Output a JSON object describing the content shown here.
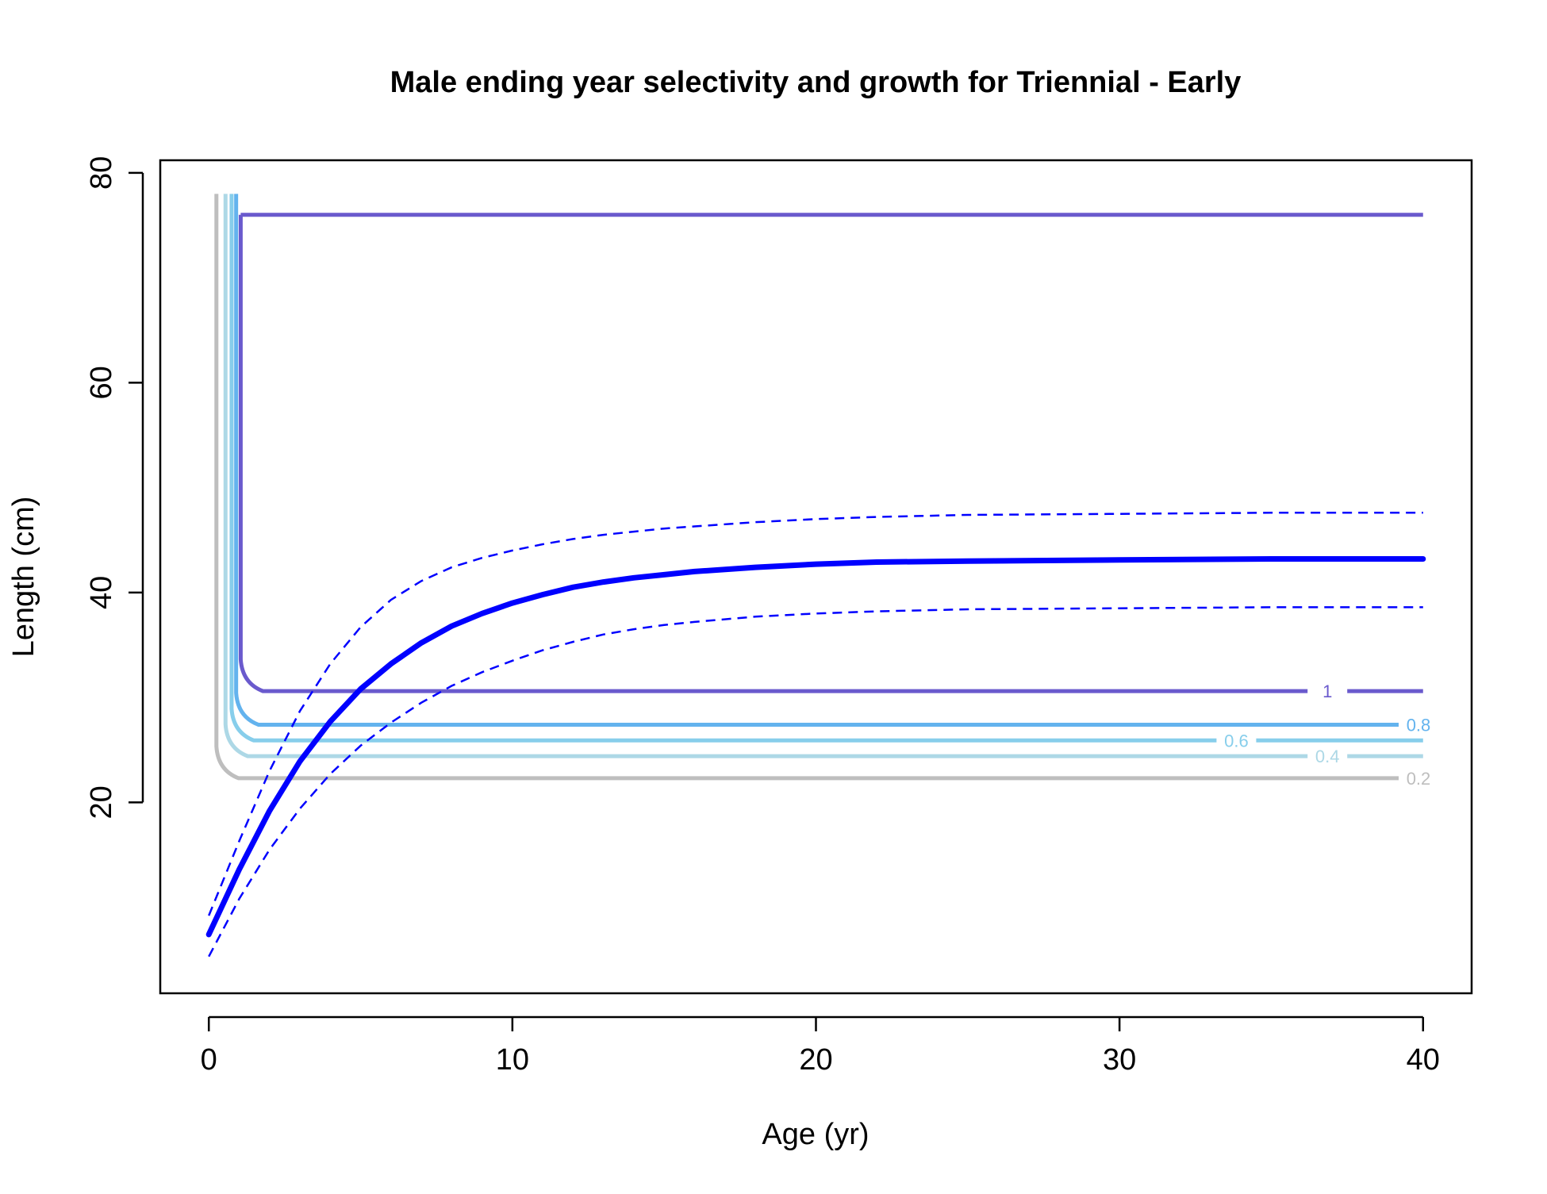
{
  "chart_data": {
    "type": "line",
    "title": "Male ending year selectivity and growth for Triennial - Early",
    "xlabel": "Age (yr)",
    "ylabel": "Length (cm)",
    "xlim": [
      -1.6,
      41.6
    ],
    "ylim": [
      1.8,
      81.2
    ],
    "xticks": [
      0,
      10,
      20,
      30,
      40
    ],
    "yticks": [
      20,
      40,
      60,
      80
    ],
    "grid": false,
    "legend": "none",
    "colors": {
      "growth": "#0000ff",
      "contour_1": "#6a5acd",
      "contour_0_8": "#63b3ee",
      "contour_0_6": "#87ceeb",
      "contour_0_4": "#add8e6",
      "contour_0_2": "#bebebe"
    },
    "growth": {
      "mean": [
        [
          0,
          7.4
        ],
        [
          1,
          13.6
        ],
        [
          2,
          19.2
        ],
        [
          3,
          23.9
        ],
        [
          4,
          27.7
        ],
        [
          5,
          30.8
        ],
        [
          6,
          33.2
        ],
        [
          7,
          35.2
        ],
        [
          8,
          36.8
        ],
        [
          9,
          38.0
        ],
        [
          10,
          39.0
        ],
        [
          11,
          39.8
        ],
        [
          12,
          40.5
        ],
        [
          13,
          41.0
        ],
        [
          14,
          41.4
        ],
        [
          15,
          41.7
        ],
        [
          16,
          42.0
        ],
        [
          18,
          42.4
        ],
        [
          20,
          42.7
        ],
        [
          22,
          42.9
        ],
        [
          25,
          43.0
        ],
        [
          30,
          43.1
        ],
        [
          35,
          43.2
        ],
        [
          40,
          43.2
        ]
      ],
      "upper": [
        [
          0,
          9.2
        ],
        [
          1,
          16.3
        ],
        [
          2,
          23.0
        ],
        [
          3,
          28.7
        ],
        [
          4,
          33.2
        ],
        [
          5,
          36.7
        ],
        [
          6,
          39.3
        ],
        [
          7,
          41.1
        ],
        [
          8,
          42.4
        ],
        [
          9,
          43.3
        ],
        [
          10,
          44.0
        ],
        [
          11,
          44.6
        ],
        [
          12,
          45.1
        ],
        [
          13,
          45.5
        ],
        [
          14,
          45.8
        ],
        [
          15,
          46.1
        ],
        [
          16,
          46.3
        ],
        [
          18,
          46.7
        ],
        [
          20,
          47.0
        ],
        [
          22,
          47.2
        ],
        [
          25,
          47.4
        ],
        [
          30,
          47.5
        ],
        [
          35,
          47.6
        ],
        [
          40,
          47.6
        ]
      ],
      "lower": [
        [
          0,
          5.3
        ],
        [
          1,
          10.8
        ],
        [
          2,
          15.5
        ],
        [
          3,
          19.4
        ],
        [
          4,
          22.7
        ],
        [
          5,
          25.4
        ],
        [
          6,
          27.6
        ],
        [
          7,
          29.5
        ],
        [
          8,
          31.1
        ],
        [
          9,
          32.4
        ],
        [
          10,
          33.5
        ],
        [
          11,
          34.5
        ],
        [
          12,
          35.3
        ],
        [
          13,
          36.0
        ],
        [
          14,
          36.5
        ],
        [
          15,
          36.9
        ],
        [
          16,
          37.2
        ],
        [
          18,
          37.7
        ],
        [
          20,
          38.0
        ],
        [
          22,
          38.2
        ],
        [
          25,
          38.4
        ],
        [
          30,
          38.5
        ],
        [
          35,
          38.6
        ],
        [
          40,
          38.6
        ]
      ]
    },
    "selectivity_contours": [
      {
        "level": "0.2",
        "upper_y": 78.0,
        "lower_y": 22.3,
        "knee_x": 0.2,
        "label_x": 39.3
      },
      {
        "level": "0.4",
        "upper_y": 78.0,
        "lower_y": 24.4,
        "knee_x": 0.5,
        "label_x": 36.3
      },
      {
        "level": "0.6",
        "upper_y": 78.0,
        "lower_y": 25.9,
        "knee_x": 0.7,
        "label_x": 33.3
      },
      {
        "level": "0.8",
        "upper_y": 78.0,
        "lower_y": 27.4,
        "knee_x": 0.85,
        "label_x": 39.3
      },
      {
        "level": "1",
        "upper_y": 76.0,
        "lower_y": 30.6,
        "knee_x": 1.0,
        "label_x": 36.3
      }
    ]
  }
}
